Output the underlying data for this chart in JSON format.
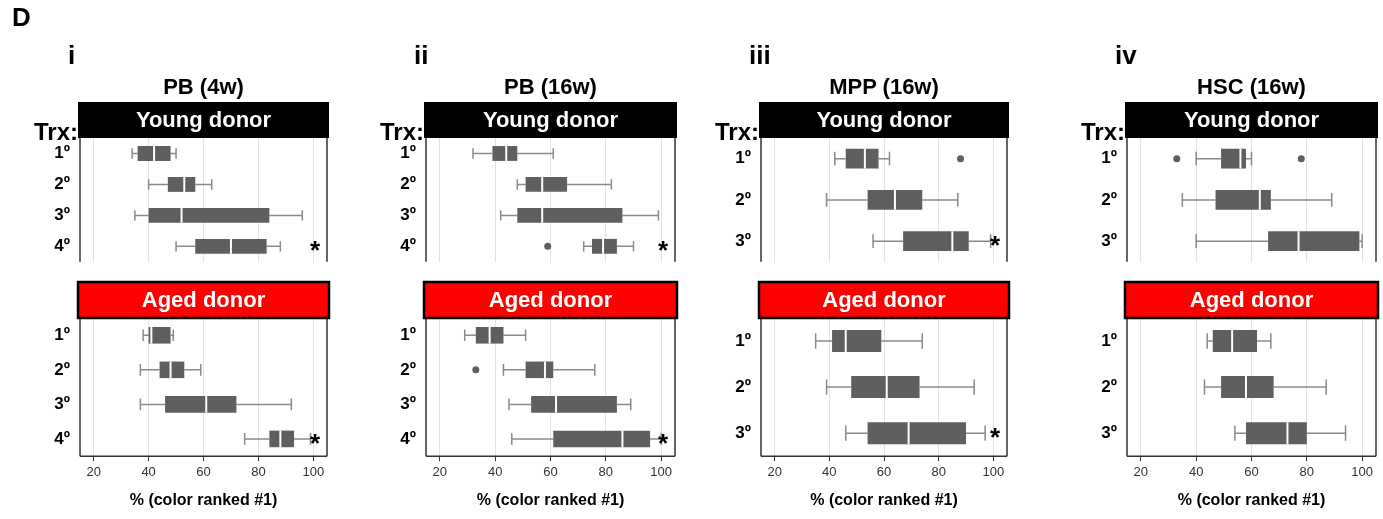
{
  "chart_data": [
    {
      "type": "box",
      "orientation": "horizontal",
      "title": "PB (4w)",
      "subtitle": "Young donor",
      "ylabel": "Trx:",
      "color": "#5f5f5f",
      "categories": [
        "1º",
        "2º",
        "3º",
        "4º"
      ],
      "boxes": [
        {
          "low": 34,
          "q1": 36,
          "median": 42,
          "q3": 48,
          "high": 50
        },
        {
          "low": 40,
          "q1": 47,
          "median": 53,
          "q3": 57,
          "high": 63
        },
        {
          "low": 35,
          "q1": 40,
          "median": 52,
          "q3": 84,
          "high": 96
        },
        {
          "low": 50,
          "q1": 57,
          "median": 70,
          "q3": 83,
          "high": 88
        }
      ],
      "xlim": [
        15,
        105
      ],
      "xticks": [
        20,
        40,
        60,
        80,
        100
      ],
      "grid": "x",
      "tick_labels": "y",
      "annotations": [
        "D",
        "i",
        "*"
      ]
    },
    {
      "type": "box",
      "orientation": "horizontal",
      "subtitle": "Aged donor",
      "xlabel": "% (color ranked #1)",
      "color": "#5f5f5f",
      "categories": [
        "1º",
        "2º",
        "3º",
        "4º"
      ],
      "boxes": [
        {
          "low": 38,
          "q1": 40,
          "median": 41,
          "q3": 48,
          "high": 49
        },
        {
          "low": 37,
          "q1": 44,
          "median": 48,
          "q3": 53,
          "high": 59
        },
        {
          "low": 37,
          "q1": 46,
          "median": 61,
          "q3": 72,
          "high": 92
        },
        {
          "low": 75,
          "q1": 84,
          "median": 88,
          "q3": 93,
          "high": 99
        }
      ],
      "xlim": [
        15,
        105
      ],
      "xticks": [
        20,
        40,
        60,
        80,
        100
      ],
      "grid": "x",
      "annotations": [
        "*"
      ]
    },
    {
      "type": "box",
      "orientation": "horizontal",
      "title": "PB (16w)",
      "subtitle": "Young donor",
      "ylabel": "Trx:",
      "color": "#5f5f5f",
      "categories": [
        "1º",
        "2º",
        "3º",
        "4º"
      ],
      "boxes": [
        {
          "low": 32,
          "q1": 39,
          "median": 44,
          "q3": 48,
          "high": 61
        },
        {
          "low": 48,
          "q1": 51,
          "median": 57,
          "q3": 66,
          "high": 82
        },
        {
          "low": 42,
          "q1": 48,
          "median": 57,
          "q3": 86,
          "high": 99
        },
        {
          "low": 72,
          "q1": 75,
          "median": 79,
          "q3": 84,
          "high": 90,
          "outliers": [
            59
          ]
        }
      ],
      "xlim": [
        15,
        105
      ],
      "xticks": [
        20,
        40,
        60,
        80,
        100
      ],
      "grid": "x",
      "tick_labels": "y",
      "annotations": [
        "ii",
        "*"
      ]
    },
    {
      "type": "box",
      "orientation": "horizontal",
      "subtitle": "Aged donor",
      "xlabel": "% (color ranked #1)",
      "color": "#5f5f5f",
      "categories": [
        "1º",
        "2º",
        "3º",
        "4º"
      ],
      "boxes": [
        {
          "low": 29,
          "q1": 33,
          "median": 38,
          "q3": 43,
          "high": 51
        },
        {
          "low": 43,
          "q1": 51,
          "median": 58,
          "q3": 61,
          "high": 76,
          "outliers": [
            33
          ]
        },
        {
          "low": 45,
          "q1": 53,
          "median": 62,
          "q3": 84,
          "high": 89
        },
        {
          "low": 46,
          "q1": 61,
          "median": 86,
          "q3": 96,
          "high": 100
        }
      ],
      "xlim": [
        15,
        105
      ],
      "xticks": [
        20,
        40,
        60,
        80,
        100
      ],
      "grid": "x",
      "annotations": [
        "*"
      ]
    },
    {
      "type": "box",
      "orientation": "horizontal",
      "title": "MPP (16w)",
      "subtitle": "Young donor",
      "ylabel": "Trx:",
      "color": "#5f5f5f",
      "categories": [
        "1º",
        "2º",
        "3º"
      ],
      "boxes": [
        {
          "low": 42,
          "q1": 46,
          "median": 53,
          "q3": 58,
          "high": 62,
          "outliers": [
            88
          ]
        },
        {
          "low": 39,
          "q1": 54,
          "median": 64,
          "q3": 74,
          "high": 87
        },
        {
          "low": 56,
          "q1": 67,
          "median": 85,
          "q3": 91,
          "high": 99
        }
      ],
      "xlim": [
        15,
        105
      ],
      "xticks": [
        20,
        40,
        60,
        80,
        100
      ],
      "grid": "x",
      "tick_labels": "y",
      "annotations": [
        "iii",
        "*"
      ]
    },
    {
      "type": "box",
      "orientation": "horizontal",
      "subtitle": "Aged donor",
      "xlabel": "% (color ranked #1)",
      "color": "#5f5f5f",
      "categories": [
        "1º",
        "2º",
        "3º"
      ],
      "boxes": [
        {
          "low": 35,
          "q1": 41,
          "median": 46,
          "q3": 59,
          "high": 74
        },
        {
          "low": 39,
          "q1": 48,
          "median": 61,
          "q3": 73,
          "high": 93
        },
        {
          "low": 46,
          "q1": 54,
          "median": 69,
          "q3": 90,
          "high": 97
        }
      ],
      "xlim": [
        15,
        105
      ],
      "xticks": [
        20,
        40,
        60,
        80,
        100
      ],
      "grid": "x",
      "annotations": [
        "*"
      ]
    },
    {
      "type": "box",
      "orientation": "horizontal",
      "title": "HSC (16w)",
      "subtitle": "Young donor",
      "ylabel": "Trx:",
      "color": "#5f5f5f",
      "categories": [
        "1º",
        "2º",
        "3º"
      ],
      "boxes": [
        {
          "low": 40,
          "q1": 49,
          "median": 56,
          "q3": 58,
          "high": 60,
          "outliers": [
            33,
            78
          ]
        },
        {
          "low": 35,
          "q1": 47,
          "median": 63,
          "q3": 67,
          "high": 89
        },
        {
          "low": 40,
          "q1": 66,
          "median": 77,
          "q3": 99,
          "high": 100
        }
      ],
      "xlim": [
        15,
        105
      ],
      "xticks": [
        20,
        40,
        60,
        80,
        100
      ],
      "grid": "x",
      "tick_labels": "y",
      "annotations": [
        "iv"
      ]
    },
    {
      "type": "box",
      "orientation": "horizontal",
      "subtitle": "Aged donor",
      "xlabel": "% (color ranked #1)",
      "color": "#5f5f5f",
      "categories": [
        "1º",
        "2º",
        "3º"
      ],
      "boxes": [
        {
          "low": 44,
          "q1": 46,
          "median": 53,
          "q3": 62,
          "high": 67
        },
        {
          "low": 43,
          "q1": 49,
          "median": 58,
          "q3": 68,
          "high": 87
        },
        {
          "low": 54,
          "q1": 58,
          "median": 73,
          "q3": 80,
          "high": 94
        }
      ],
      "xlim": [
        15,
        105
      ],
      "xticks": [
        20,
        40,
        60,
        80,
        100
      ],
      "grid": "x"
    }
  ]
}
